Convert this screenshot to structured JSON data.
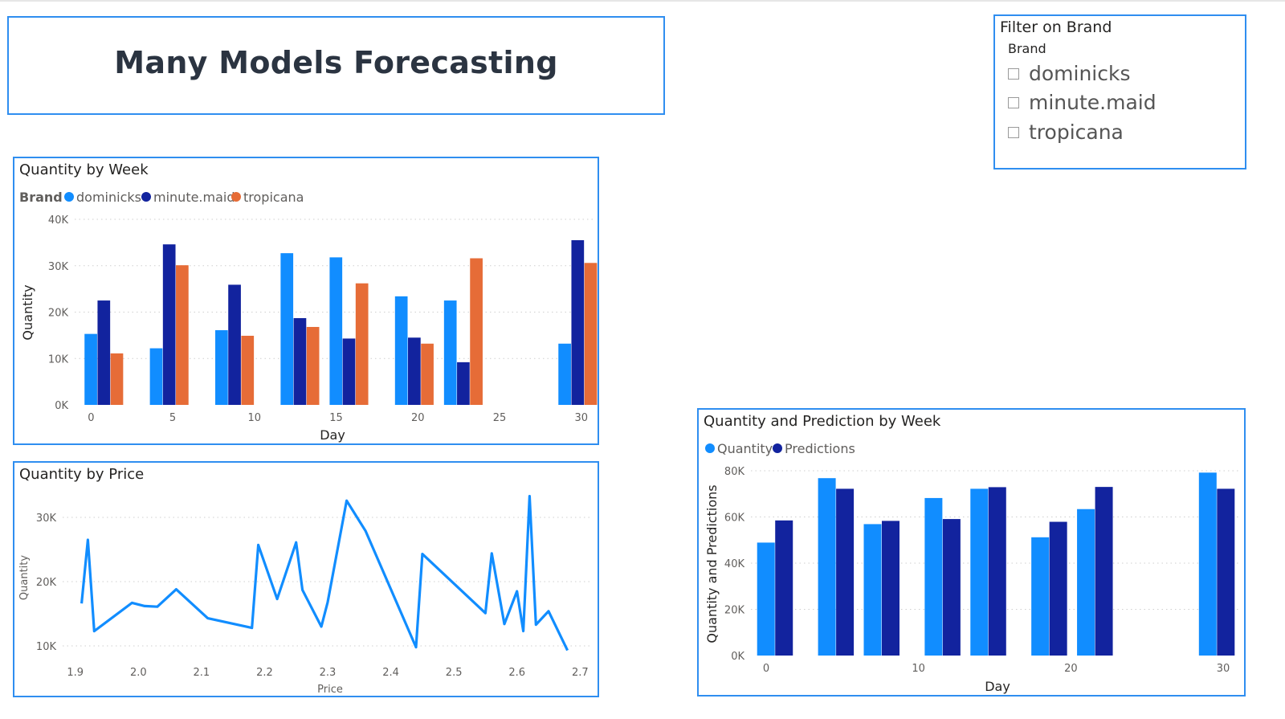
{
  "title": "Many Models Forecasting",
  "filter": {
    "title": "Filter on Brand",
    "header": "Brand",
    "options": [
      "dominicks",
      "minute.maid",
      "tropicana"
    ]
  },
  "colors": {
    "dominicks": "#118dff",
    "minute_maid": "#12239e",
    "tropicana": "#e66c37",
    "line": "#118dff",
    "border": "#2f8ef0"
  },
  "chart_data": [
    {
      "id": "quantity-by-week",
      "type": "bar",
      "title": "Quantity by Week",
      "legend_title": "Brand",
      "legend_position": "top-left",
      "xlabel": "Day",
      "ylabel": "Quantity",
      "xlim": [
        -1,
        30.8
      ],
      "ylim": [
        0,
        40000
      ],
      "xticks": [
        0,
        5,
        10,
        15,
        20,
        25,
        30
      ],
      "yticks": [
        0,
        10000,
        20000,
        30000,
        40000
      ],
      "ytick_labels": [
        "0K",
        "10K",
        "20K",
        "30K",
        "40K"
      ],
      "grid": true,
      "x": [
        0,
        4,
        8,
        12,
        15,
        19,
        22,
        29
      ],
      "series": [
        {
          "name": "dominicks",
          "color": "#118dff",
          "values": [
            15300,
            12200,
            16100,
            32700,
            31800,
            23400,
            22500,
            13200
          ]
        },
        {
          "name": "minute.maid",
          "color": "#12239e",
          "values": [
            22500,
            34600,
            25900,
            18700,
            14300,
            14500,
            9200,
            35500
          ]
        },
        {
          "name": "tropicana",
          "color": "#e66c37",
          "values": [
            11100,
            30100,
            14900,
            16800,
            26200,
            13200,
            31600,
            30600
          ]
        }
      ]
    },
    {
      "id": "quantity-by-price",
      "type": "line",
      "title": "Quantity by Price",
      "xlabel": "Price",
      "ylabel": "Quantity",
      "xlim": [
        1.88,
        2.72
      ],
      "ylim": [
        7500,
        33500
      ],
      "xticks": [
        1.9,
        2.0,
        2.1,
        2.2,
        2.3,
        2.4,
        2.5,
        2.6,
        2.7
      ],
      "xtick_labels": [
        "1.9",
        "2.0",
        "2.1",
        "2.2",
        "2.3",
        "2.4",
        "2.5",
        "2.6",
        "2.7"
      ],
      "yticks": [
        10000,
        20000,
        30000
      ],
      "ytick_labels": [
        "10K",
        "20K",
        "30K"
      ],
      "grid": true,
      "series": [
        {
          "name": "Quantity",
          "color": "#118dff",
          "x": [
            1.91,
            1.92,
            1.93,
            1.99,
            2.01,
            2.03,
            2.06,
            2.11,
            2.18,
            2.19,
            2.22,
            2.25,
            2.26,
            2.29,
            2.3,
            2.33,
            2.36,
            2.44,
            2.45,
            2.55,
            2.56,
            2.58,
            2.6,
            2.61,
            2.62,
            2.63,
            2.65,
            2.68
          ],
          "y": [
            16600,
            26500,
            12300,
            16700,
            16200,
            16100,
            18800,
            14300,
            12800,
            25700,
            17300,
            26100,
            18700,
            13000,
            16800,
            32600,
            27900,
            9800,
            24300,
            15100,
            24400,
            13400,
            18500,
            12300,
            33300,
            13300,
            15400,
            9300
          ]
        }
      ]
    },
    {
      "id": "quantity-and-prediction-by-week",
      "type": "bar",
      "title": "Quantity and Prediction by Week",
      "legend_position": "top-left",
      "xlabel": "Day",
      "ylabel": "Quantity and Predictions",
      "xlim": [
        -1,
        31
      ],
      "ylim": [
        0,
        80000
      ],
      "xticks": [
        0,
        10,
        20,
        30
      ],
      "yticks": [
        0,
        20000,
        40000,
        60000,
        80000
      ],
      "ytick_labels": [
        "0K",
        "20K",
        "40K",
        "60K",
        "80K"
      ],
      "grid": true,
      "x": [
        0,
        4,
        7,
        11,
        14,
        18,
        21,
        29
      ],
      "series": [
        {
          "name": "Quantity",
          "color": "#118dff",
          "values": [
            48900,
            76800,
            56900,
            68200,
            72200,
            51200,
            63400,
            79200
          ]
        },
        {
          "name": "Predictions",
          "color": "#12239e",
          "values": [
            58500,
            72200,
            58300,
            59100,
            72900,
            57900,
            73000,
            72200
          ]
        }
      ]
    }
  ]
}
